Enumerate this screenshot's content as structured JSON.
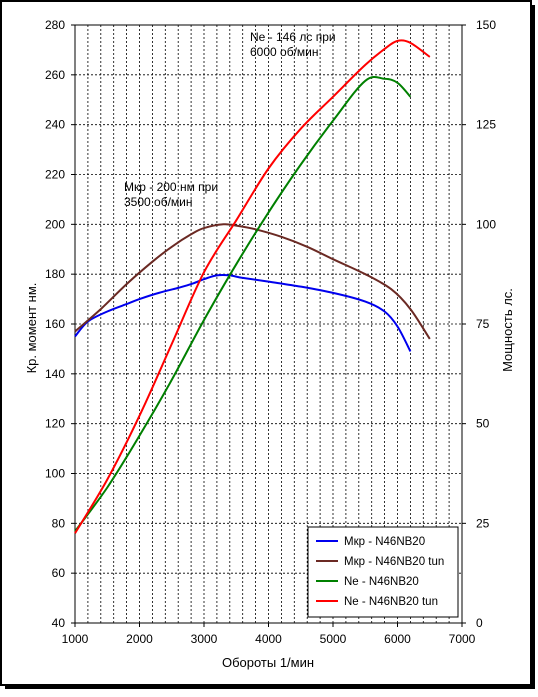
{
  "chart_data": {
    "type": "line",
    "xlabel": "Обороты 1/мин",
    "ylabel": "Кр. момент нм.",
    "y2label": "Мощность лс.",
    "xlim": [
      1000,
      7000
    ],
    "ylim": [
      40,
      280
    ],
    "y2lim": [
      0,
      150
    ],
    "xticks": [
      "1000",
      "2000",
      "3000",
      "4000",
      "5000",
      "6000",
      "7000"
    ],
    "yticks": [
      "40",
      "60",
      "80",
      "100",
      "120",
      "140",
      "160",
      "180",
      "200",
      "220",
      "240",
      "260",
      "280"
    ],
    "y2ticks": [
      "0",
      "25",
      "50",
      "75",
      "100",
      "125",
      "150"
    ],
    "grid": true,
    "legend_position": "bottom-right",
    "annotations": [
      {
        "lines": [
          "Мкр - 200 нм при",
          "3500 об/мин"
        ]
      },
      {
        "lines": [
          "Ne - 146 лс при",
          "6000 об/мин"
        ]
      }
    ],
    "series": [
      {
        "name": "Мкр - N46NB20",
        "axis": "left",
        "color": "#0000ee",
        "points": [
          [
            1000,
            155
          ],
          [
            1200,
            161
          ],
          [
            1500,
            165
          ],
          [
            1800,
            168
          ],
          [
            2000,
            170
          ],
          [
            2300,
            172.5
          ],
          [
            2600,
            174.5
          ],
          [
            2800,
            176
          ],
          [
            3000,
            178
          ],
          [
            3200,
            179.5
          ],
          [
            3400,
            179.5
          ],
          [
            3600,
            178.5
          ],
          [
            4000,
            177
          ],
          [
            4500,
            175
          ],
          [
            5000,
            172.5
          ],
          [
            5500,
            169
          ],
          [
            5800,
            165
          ],
          [
            6000,
            159
          ],
          [
            6200,
            149
          ]
        ]
      },
      {
        "name": "Мкр - N46NB20 tun",
        "axis": "left",
        "color": "#6b2a24",
        "points": [
          [
            1000,
            157
          ],
          [
            1400,
            166
          ],
          [
            1800,
            176
          ],
          [
            2200,
            185
          ],
          [
            2500,
            191
          ],
          [
            2800,
            196
          ],
          [
            3000,
            198.5
          ],
          [
            3300,
            200
          ],
          [
            3500,
            199.5
          ],
          [
            3800,
            198
          ],
          [
            4200,
            195
          ],
          [
            4600,
            191
          ],
          [
            5000,
            186
          ],
          [
            5500,
            180
          ],
          [
            5900,
            174
          ],
          [
            6200,
            166
          ],
          [
            6500,
            154
          ]
        ]
      },
      {
        "name": "Ne -  N46NB20",
        "axis": "right",
        "color": "#008000",
        "points": [
          [
            1000,
            23
          ],
          [
            1500,
            34
          ],
          [
            2000,
            47
          ],
          [
            2500,
            61
          ],
          [
            3000,
            76
          ],
          [
            3500,
            90
          ],
          [
            4000,
            103
          ],
          [
            4500,
            115
          ],
          [
            5000,
            126
          ],
          [
            5500,
            136
          ],
          [
            5800,
            136.5
          ],
          [
            6000,
            135.5
          ],
          [
            6200,
            132
          ]
        ]
      },
      {
        "name": "Ne - N46NB20 tun",
        "axis": "right",
        "color": "#ff0000",
        "points": [
          [
            1000,
            22.5
          ],
          [
            1500,
            36
          ],
          [
            2000,
            52
          ],
          [
            2500,
            70
          ],
          [
            3000,
            88
          ],
          [
            3500,
            101
          ],
          [
            4000,
            114
          ],
          [
            4500,
            124
          ],
          [
            5000,
            132
          ],
          [
            5500,
            140
          ],
          [
            5800,
            144
          ],
          [
            6000,
            146
          ],
          [
            6200,
            145.5
          ],
          [
            6500,
            142
          ]
        ]
      }
    ]
  }
}
